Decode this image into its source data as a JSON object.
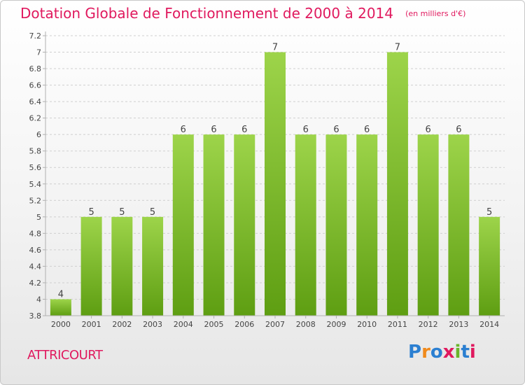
{
  "header": {
    "title": "Dotation Globale de Fonctionnement de 2000 à 2014",
    "subtitle": "(en milliers d'€)"
  },
  "footer": {
    "commune": "ATTRICOURT",
    "logo_text": "Proxiti"
  },
  "colors": {
    "accent": "#e0195e",
    "bar_top": "#9dd44a",
    "bar_bottom": "#5e9e12",
    "grid": "#cfcfcf",
    "axis": "#b0b0b0",
    "text": "#444444"
  },
  "chart_data": {
    "type": "bar",
    "title": "Dotation Globale de Fonctionnement de 2000 à 2014",
    "subtitle": "(en milliers d'€)",
    "categories": [
      "2000",
      "2001",
      "2002",
      "2003",
      "2004",
      "2005",
      "2006",
      "2007",
      "2008",
      "2009",
      "2010",
      "2011",
      "2012",
      "2013",
      "2014"
    ],
    "values": [
      4,
      5,
      5,
      5,
      6,
      6,
      6,
      7,
      6,
      6,
      6,
      7,
      6,
      6,
      5
    ],
    "data_labels": [
      "4",
      "5",
      "5",
      "5",
      "6",
      "6",
      "6",
      "7",
      "6",
      "6",
      "6",
      "7",
      "6",
      "6",
      "5"
    ],
    "ylim": [
      3.8,
      7.2
    ],
    "yticks": [
      3.8,
      4,
      4.2,
      4.4,
      4.6,
      4.8,
      5,
      5.2,
      5.4,
      5.6,
      5.8,
      6,
      6.2,
      6.4,
      6.6,
      6.8,
      7,
      7.2
    ],
    "ytick_labels": [
      "3.8",
      "4",
      "4.2",
      "4.4",
      "4.6",
      "4.8",
      "5",
      "5.2",
      "5.4",
      "5.6",
      "5.8",
      "6",
      "6.2",
      "6.4",
      "6.6",
      "6.8",
      "7",
      "7.2"
    ],
    "grid": true,
    "xlabel": "",
    "ylabel": ""
  }
}
